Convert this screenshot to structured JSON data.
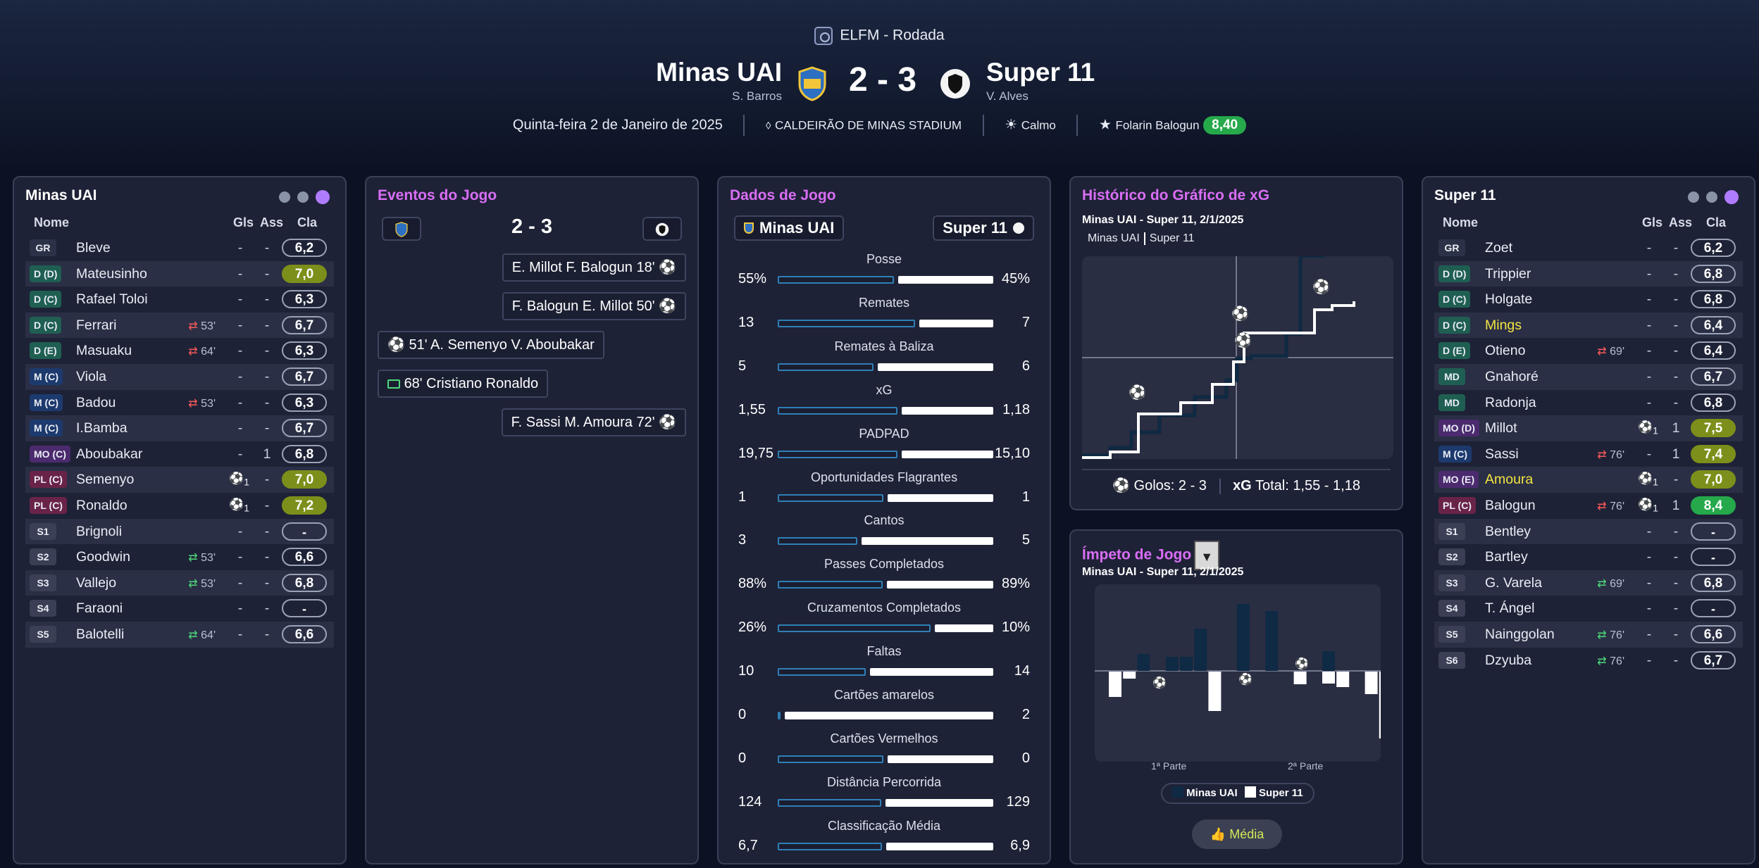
{
  "header": {
    "competition": "ELFM - Rodada",
    "home": {
      "name": "Minas UAI",
      "coach": "S. Barros"
    },
    "away": {
      "name": "Super 11",
      "coach": "V. Alves"
    },
    "score": "2 - 3",
    "date": "Quinta-feira 2 de Janeiro de 2025",
    "stadium": "CALDEIRÃO DE MINAS STADIUM",
    "weather": "Calmo",
    "motm": {
      "name": "Folarin Balogun",
      "rating": "8,40"
    },
    "colors": {
      "rating_green": "#25a94b",
      "accent_purple": "#d96ef5"
    }
  },
  "columns": {
    "name": "Nome",
    "gls": "Gls",
    "ass": "Ass",
    "cla": "Cla"
  },
  "home_panel": {
    "title": "Minas UAI",
    "players": [
      {
        "pos": "GR",
        "name": "Bleve",
        "gls": "-",
        "ass": "-",
        "rating": "6,2"
      },
      {
        "pos": "D (D)",
        "name": "Mateusinho",
        "gls": "-",
        "ass": "-",
        "rating": "7,0"
      },
      {
        "pos": "D (C)",
        "name": "Rafael Toloi",
        "gls": "-",
        "ass": "-",
        "rating": "6,3"
      },
      {
        "pos": "D (C)",
        "name": "Ferrari",
        "sub": "53'",
        "gls": "-",
        "ass": "-",
        "rating": "6,7"
      },
      {
        "pos": "D (E)",
        "name": "Masuaku",
        "sub": "64'",
        "gls": "-",
        "ass": "-",
        "rating": "6,3"
      },
      {
        "pos": "M (C)",
        "name": "Viola",
        "gls": "-",
        "ass": "-",
        "rating": "6,7"
      },
      {
        "pos": "M (C)",
        "name": "Badou",
        "sub": "53'",
        "gls": "-",
        "ass": "-",
        "rating": "6,3"
      },
      {
        "pos": "M (C)",
        "name": "I.Bamba",
        "gls": "-",
        "ass": "-",
        "rating": "6,7"
      },
      {
        "pos": "MO (C)",
        "name": "Aboubakar",
        "gls": "-",
        "ass": "1",
        "rating": "6,8"
      },
      {
        "pos": "PL (C)",
        "name": "Semenyo",
        "goal": "1",
        "ass": "-",
        "rating": "7,0"
      },
      {
        "pos": "PL (C)",
        "name": "Ronaldo",
        "goal": "1",
        "ass": "-",
        "rating": "7,2"
      },
      {
        "pos": "S1",
        "name": "Brignoli",
        "gls": "-",
        "ass": "-",
        "rating": "-"
      },
      {
        "pos": "S2",
        "name": "Goodwin",
        "sub": "53'",
        "gls": "-",
        "ass": "-",
        "rating": "6,6"
      },
      {
        "pos": "S3",
        "name": "Vallejo",
        "sub": "53'",
        "gls": "-",
        "ass": "-",
        "rating": "6,8"
      },
      {
        "pos": "S4",
        "name": "Faraoni",
        "gls": "-",
        "ass": "-",
        "rating": "-"
      },
      {
        "pos": "S5",
        "name": "Balotelli",
        "sub": "64'",
        "gls": "-",
        "ass": "-",
        "rating": "6,6"
      }
    ]
  },
  "events_panel": {
    "title": "Eventos do Jogo",
    "score": "2 - 3",
    "events": [
      {
        "text": "E. Millot  F. Balogun 18'"
      },
      {
        "text": "F. Balogun  E. Millot 50'"
      },
      {
        "text": "51'  A. Semenyo  V. Aboubakar"
      },
      {
        "text": "68'  Cristiano Ronaldo"
      },
      {
        "text": "F. Sassi  M. Amoura 72'"
      }
    ]
  },
  "stats_panel": {
    "title": "Dados de Jogo",
    "home": "Minas UAI",
    "away": "Super 11",
    "stats": [
      {
        "label": "Posse",
        "home": "55%",
        "away": "45%",
        "h": 55,
        "a": 45
      },
      {
        "label": "Remates",
        "home": "13",
        "away": "7",
        "h": 13,
        "a": 7
      },
      {
        "label": "Remates à Baliza",
        "home": "5",
        "away": "6",
        "h": 5,
        "a": 6
      },
      {
        "label": "xG",
        "home": "1,55",
        "away": "1,18",
        "h": 1.55,
        "a": 1.18
      },
      {
        "label": "PADPAD",
        "home": "19,75",
        "away": "15,10",
        "h": 19.75,
        "a": 15.1
      },
      {
        "label": "Oportunidades Flagrantes",
        "home": "1",
        "away": "1",
        "h": 1,
        "a": 1
      },
      {
        "label": "Cantos",
        "home": "3",
        "away": "5",
        "h": 3,
        "a": 5
      },
      {
        "label": "Passes Completados",
        "home": "88%",
        "away": "89%",
        "h": 88,
        "a": 89
      },
      {
        "label": "Cruzamentos Completados",
        "home": "26%",
        "away": "10%",
        "h": 26,
        "a": 10
      },
      {
        "label": "Faltas",
        "home": "10",
        "away": "14",
        "h": 10,
        "a": 14
      },
      {
        "label": "Cartões amarelos",
        "home": "0",
        "away": "2",
        "h": 0,
        "a": 2
      },
      {
        "label": "Cartões Vermelhos",
        "home": "0",
        "away": "0",
        "h": 0,
        "a": 0
      },
      {
        "label": "Distância Percorrida",
        "home": "124",
        "away": "129",
        "h": 124,
        "a": 129
      },
      {
        "label": "Classificação Média",
        "home": "6,7",
        "away": "6,9",
        "h": 6.7,
        "a": 6.9
      }
    ]
  },
  "xg_panel": {
    "title": "Histórico do Gráfico de xG",
    "subtitle": "Minas UAI - Super 11, 2/1/2025",
    "legend_home": "Minas UAI",
    "legend_away": "Super 11",
    "goals_label": "Golos:",
    "goals_value": "2 - 3",
    "xg_label": "xG",
    "xg_total": "Total: 1,55 - 1,18"
  },
  "momentum_panel": {
    "title": "Ímpeto de Jogo",
    "subtitle": "Minas UAI - Super 11, 2/1/2025",
    "first_half": "1ª Parte",
    "second_half": "2ª Parte",
    "legend_home": "Minas UAI",
    "legend_away": "Super 11",
    "button": "Média"
  },
  "away_panel": {
    "title": "Super 11",
    "players": [
      {
        "pos": "GR",
        "name": "Zoet",
        "gls": "-",
        "ass": "-",
        "rating": "6,2"
      },
      {
        "pos": "D (D)",
        "name": "Trippier",
        "gls": "-",
        "ass": "-",
        "rating": "6,8"
      },
      {
        "pos": "D (C)",
        "name": "Holgate",
        "gls": "-",
        "ass": "-",
        "rating": "6,8"
      },
      {
        "pos": "D (C)",
        "name": "Mings",
        "gls": "-",
        "ass": "-",
        "rating": "6,4"
      },
      {
        "pos": "D (E)",
        "name": "Otieno",
        "sub": "69'",
        "gls": "-",
        "ass": "-",
        "rating": "6,4"
      },
      {
        "pos": "MD",
        "name": "Gnahoré",
        "gls": "-",
        "ass": "-",
        "rating": "6,7"
      },
      {
        "pos": "MD",
        "name": "Radonja",
        "gls": "-",
        "ass": "-",
        "rating": "6,8"
      },
      {
        "pos": "MO (D)",
        "name": "Millot",
        "goal": "1",
        "ass": "1",
        "rating": "7,5"
      },
      {
        "pos": "M (C)",
        "name": "Sassi",
        "sub": "76'",
        "gls": "-",
        "ass": "1",
        "rating": "7,4"
      },
      {
        "pos": "MO (E)",
        "name": "Amoura",
        "goal": "1",
        "ass": "-",
        "rating": "7,0"
      },
      {
        "pos": "PL (C)",
        "name": "Balogun",
        "sub": "76'",
        "goal": "1",
        "ass": "1",
        "rating": "8,4"
      },
      {
        "pos": "S1",
        "name": "Bentley",
        "gls": "-",
        "ass": "-",
        "rating": "-"
      },
      {
        "pos": "S2",
        "name": "Bartley",
        "gls": "-",
        "ass": "-",
        "rating": "-"
      },
      {
        "pos": "S3",
        "name": "G. Varela",
        "sub": "69'",
        "gls": "-",
        "ass": "-",
        "rating": "6,8"
      },
      {
        "pos": "S4",
        "name": "T. Ángel",
        "gls": "-",
        "ass": "-",
        "rating": "-"
      },
      {
        "pos": "S5",
        "name": "Nainggolan",
        "sub": "76'",
        "gls": "-",
        "ass": "-",
        "rating": "6,6"
      },
      {
        "pos": "S6",
        "name": "Dzyuba",
        "sub": "76'",
        "gls": "-",
        "ass": "-",
        "rating": "6,7"
      }
    ]
  }
}
